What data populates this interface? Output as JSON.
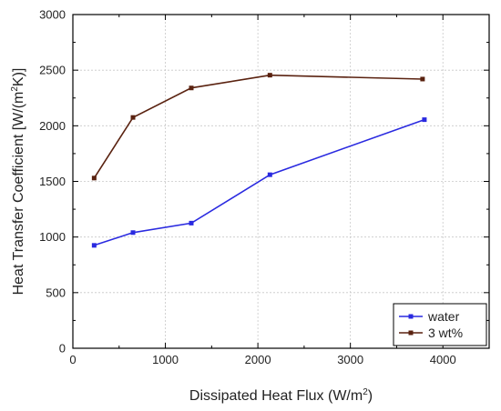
{
  "chart_data": {
    "type": "line",
    "xlabel": "Dissipated Heat Flux (W/m",
    "xlabel_sup": "2",
    "xlabel_end": ")",
    "ylabel": "Heat Transfer Coefficient [W/(m",
    "ylabel_sup": "2",
    "ylabel_end": "K)]",
    "xlim": [
      0,
      4500
    ],
    "ylim": [
      0,
      3000
    ],
    "x_ticks": [
      0,
      1000,
      2000,
      3000,
      4000
    ],
    "y_ticks": [
      0,
      500,
      1000,
      1500,
      2000,
      2500,
      3000
    ],
    "x_minor_ticks": [
      500,
      1500,
      2500,
      3500
    ],
    "y_minor_ticks": [
      250,
      750,
      1250,
      1750,
      2250,
      2750
    ],
    "grid": true,
    "legend_position": "bottom-right",
    "series": [
      {
        "name": "water",
        "color": "#2a2ae0",
        "marker": "square",
        "x": [
          230,
          650,
          1280,
          2130,
          3800
        ],
        "y": [
          925,
          1040,
          1125,
          1560,
          2055
        ]
      },
      {
        "name": "3 wt%",
        "color": "#5a2210",
        "marker": "square",
        "x": [
          230,
          650,
          1280,
          2130,
          3780
        ],
        "y": [
          1530,
          2075,
          2340,
          2455,
          2420
        ]
      }
    ]
  }
}
